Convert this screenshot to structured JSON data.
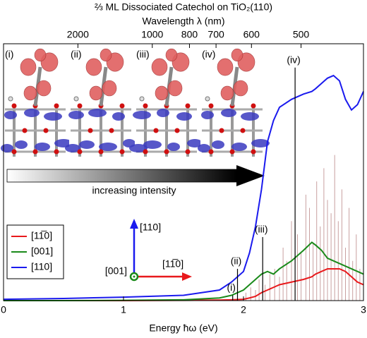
{
  "chart_data": {
    "type": "line",
    "title": "⅔ ML Dissociated Catechol on TiO₂(110)",
    "x_label": "Energy ħω (eV)",
    "x2_label": "Wavelength λ (nm)",
    "x": [
      0,
      0.5,
      1,
      1.5,
      1.8,
      1.9,
      2,
      2.05,
      2.1,
      2.15,
      2.2,
      2.25,
      2.3,
      2.4,
      2.5,
      2.57,
      2.6,
      2.65,
      2.7,
      2.75,
      2.8,
      2.85,
      2.9,
      2.95,
      3
    ],
    "series": [
      {
        "name": "[11̅0]",
        "color": "#e8191c",
        "values": [
          0,
          0,
          0,
          0.1,
          0.2,
          0.3,
          0.5,
          1,
          1.6,
          3,
          4,
          5,
          6,
          7,
          8,
          9,
          10,
          11,
          12,
          12,
          12,
          11,
          9,
          7,
          6
        ]
      },
      {
        "name": "[001]",
        "color": "#1a8a1a",
        "values": [
          0,
          0,
          0.1,
          0.3,
          1,
          2,
          4,
          6,
          8,
          10,
          11,
          10,
          12,
          15,
          19,
          22,
          21,
          19,
          16,
          15,
          14,
          13,
          12,
          11,
          10
        ]
      },
      {
        "name": "[110]",
        "color": "#1a1aee",
        "values": [
          0.5,
          0.8,
          1.3,
          2,
          4,
          7,
          11,
          18,
          28,
          42,
          60,
          68,
          73,
          76,
          78,
          79,
          80,
          82,
          84,
          85,
          83,
          76,
          72,
          74,
          79
        ]
      }
    ],
    "xlim": [
      0,
      3
    ],
    "xticks": [
      0,
      1,
      2,
      3
    ],
    "ylim": [
      0,
      97
    ],
    "x2ticks": [
      2000,
      1000,
      800,
      700,
      600,
      500
    ],
    "legend": "lower left",
    "transitions": {
      "labels": [
        "(i)",
        "(ii)",
        "(iii)",
        "(iv)"
      ],
      "x": [
        1.91,
        1.95,
        2.16,
        2.43
      ],
      "values": [
        2,
        12,
        24,
        88
      ],
      "color": "#000000"
    },
    "sticks": {
      "color": "#c9a0a0",
      "x": [
        2.02,
        2.06,
        2.1,
        2.13,
        2.18,
        2.22,
        2.26,
        2.3,
        2.33,
        2.36,
        2.4,
        2.45,
        2.48,
        2.52,
        2.55,
        2.58,
        2.61,
        2.64,
        2.67,
        2.7,
        2.73,
        2.76,
        2.79,
        2.82,
        2.85,
        2.88,
        2.91,
        2.94,
        2.97
      ],
      "values": [
        3,
        5,
        4,
        8,
        6,
        10,
        12,
        9,
        20,
        15,
        30,
        25,
        18,
        40,
        35,
        22,
        45,
        28,
        50,
        38,
        33,
        55,
        30,
        42,
        20,
        35,
        15,
        25,
        12
      ]
    },
    "insets": [
      "(i)",
      "(ii)",
      "(iii)",
      "(iv)"
    ],
    "annotation": "increasing intensity",
    "axes_inset": {
      "labels": [
        "[110]",
        "[11̅0]",
        "[001]"
      ]
    }
  }
}
